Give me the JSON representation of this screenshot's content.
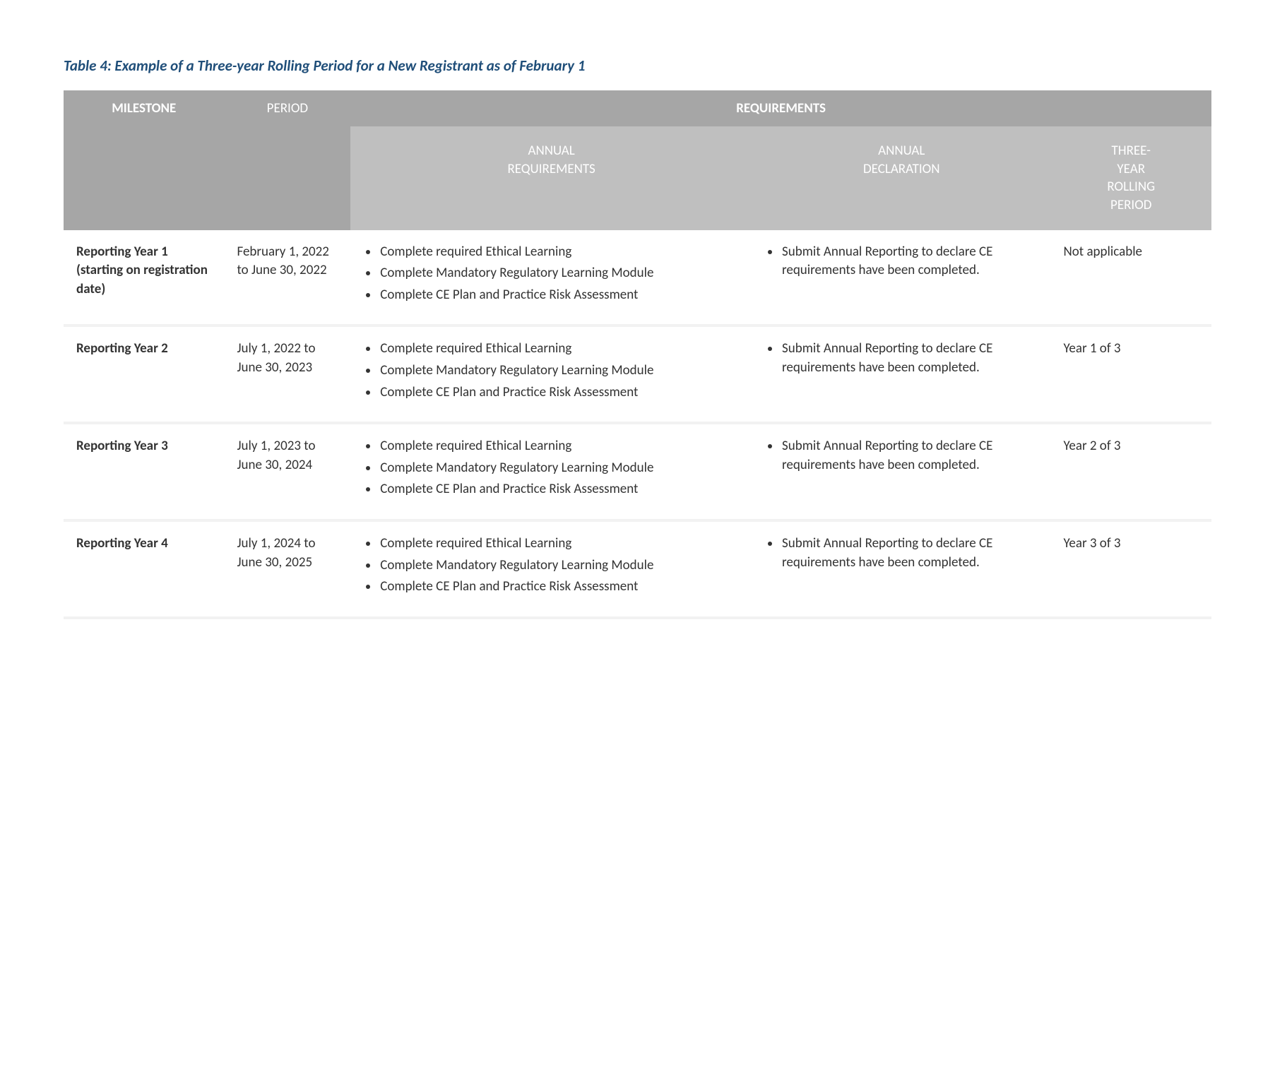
{
  "caption": "Table 4:  Example of a Three-year Rolling Period for a New Registrant as of February 1",
  "colors": {
    "caption": "#1f4e79",
    "header_dark_bg": "#a6a6a6",
    "header_light_bg": "#bfbfbf",
    "header_text": "#ffffff",
    "body_text": "#333333",
    "row_sep": "#f2f2f2",
    "page_bg": "#ffffff"
  },
  "header": {
    "milestone": "MILESTONE",
    "period": "PERIOD",
    "requirements_span": "REQUIREMENTS",
    "annual_requirements": "ANNUAL\nREQUIREMENTS",
    "annual_declaration": "ANNUAL\nDECLARATION",
    "rolling": "THREE-\nYEAR\nROLLING\nPERIOD"
  },
  "annual_req_bullets": [
    "Complete required Ethical Learning",
    "Complete Mandatory Regulatory Learning Module",
    "Complete CE Plan and Practice Risk Assessment"
  ],
  "annual_decl_bullets": [
    "Submit Annual Reporting to declare CE requirements have been completed."
  ],
  "rows": [
    {
      "milestone": "Reporting Year 1 (starting on registration date)",
      "period": "February 1, 2022 to June 30, 2022",
      "rolling": "Not applicable"
    },
    {
      "milestone": "Reporting Year 2",
      "period": "July 1, 2022 to June 30, 2023",
      "rolling": "Year 1 of 3"
    },
    {
      "milestone": "Reporting Year 3",
      "period": "July 1, 2023 to June 30, 2024",
      "rolling": "Year 2 of 3"
    },
    {
      "milestone": "Reporting Year 4",
      "period": "July 1, 2024 to June 30, 2025",
      "rolling": "Year 3 of 3"
    }
  ]
}
